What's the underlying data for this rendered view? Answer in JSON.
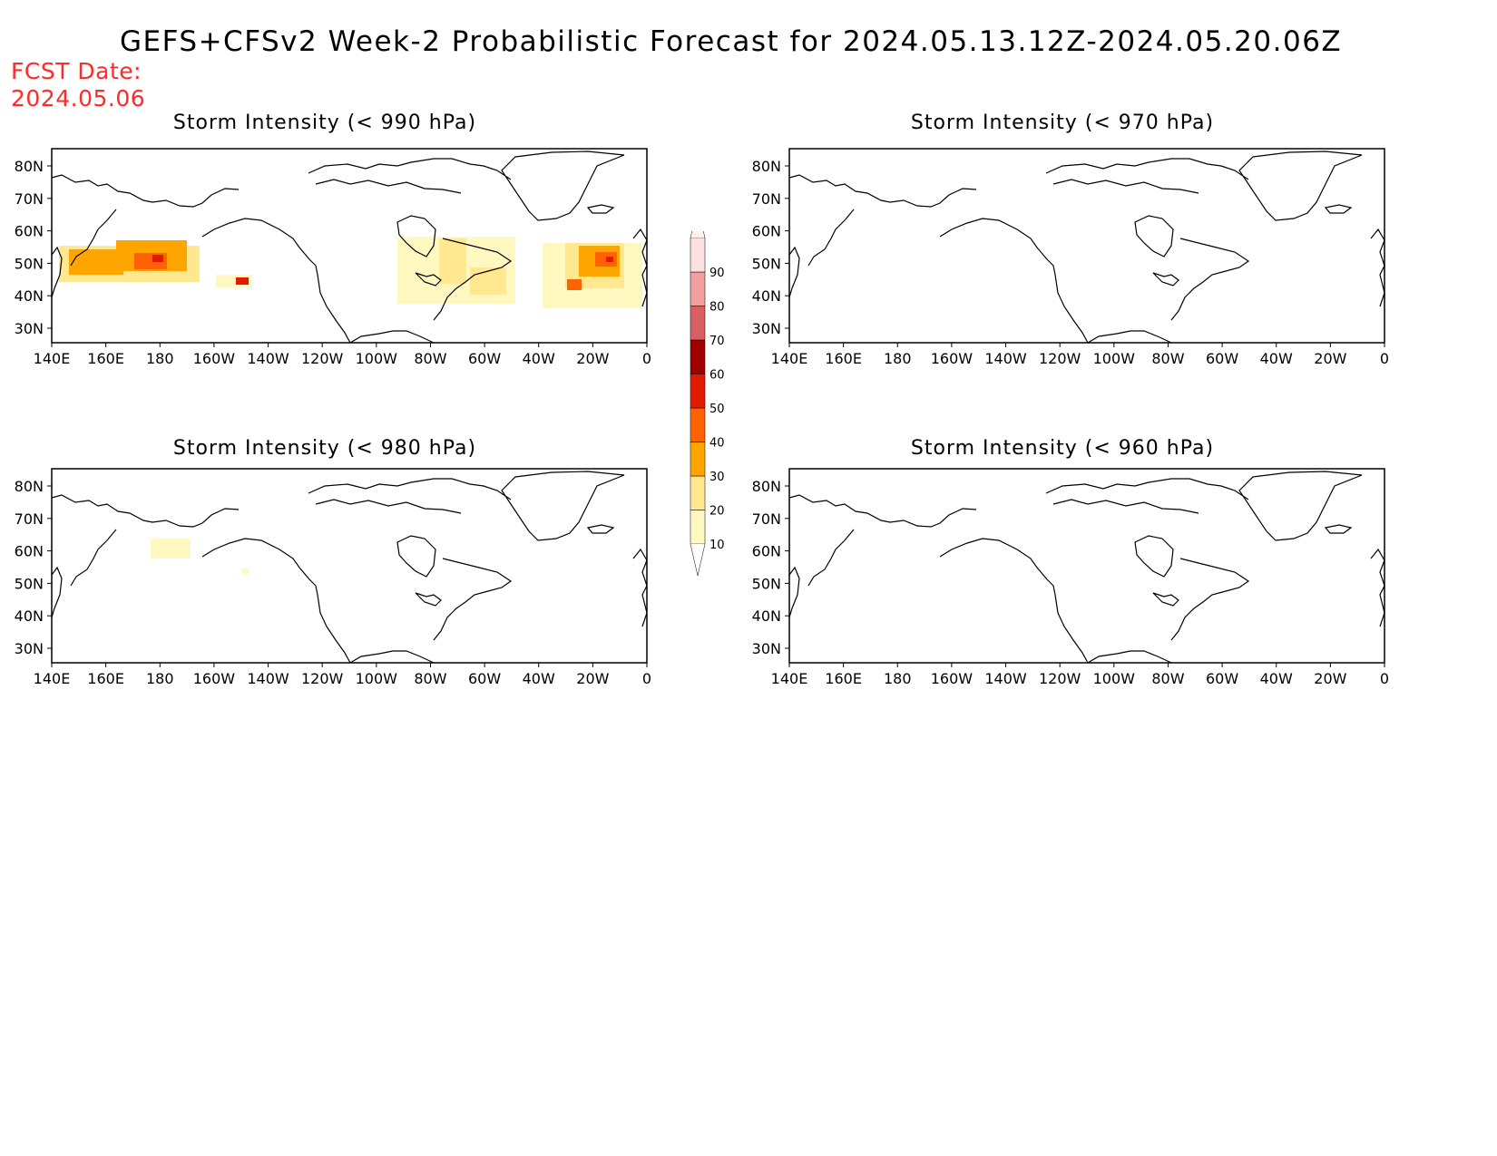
{
  "header": {
    "title": "GEFS+CFSv2 Week-2 Probabilistic Forecast for 2024.05.13.12Z-2024.05.20.06Z",
    "fcst_label": "FCST Date:",
    "fcst_value": "2024.05.06"
  },
  "axes": {
    "lat_labels": [
      "80N",
      "70N",
      "60N",
      "50N",
      "40N",
      "30N"
    ],
    "lon_labels": [
      "140E",
      "160E",
      "180",
      "160W",
      "140W",
      "120W",
      "100W",
      "80W",
      "60W",
      "40W",
      "20W",
      "0"
    ]
  },
  "panels": [
    {
      "id": "p990",
      "title": "Storm Intensity (< 990 hPa)",
      "threshold": "990 hPa"
    },
    {
      "id": "p970",
      "title": "Storm Intensity (< 970 hPa)",
      "threshold": "970 hPa"
    },
    {
      "id": "p980",
      "title": "Storm Intensity (< 980 hPa)",
      "threshold": "980 hPa"
    },
    {
      "id": "p960",
      "title": "Storm Intensity (< 960 hPa)",
      "threshold": "960 hPa"
    }
  ],
  "colorbar": {
    "labels": [
      "10",
      "20",
      "30",
      "40",
      "50",
      "60",
      "70",
      "80",
      "90"
    ],
    "colors": [
      "#fff8c0",
      "#ffe890",
      "#ffa500",
      "#ff6200",
      "#e31a00",
      "#a00000",
      "#d86060",
      "#f0a0a0",
      "#fde0e0"
    ]
  },
  "colors": {
    "land_line": "#000000",
    "background": "#ffffff",
    "fcst_text": "#ff2a2a"
  }
}
